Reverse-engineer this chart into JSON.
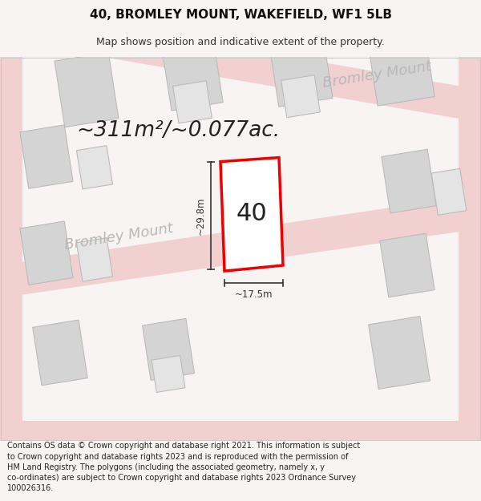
{
  "title_line1": "40, BROMLEY MOUNT, WAKEFIELD, WF1 5LB",
  "title_line2": "Map shows position and indicative extent of the property.",
  "area_text": "~311m²/~0.077ac.",
  "label_number": "40",
  "dim_height": "~29.8m",
  "dim_width": "~17.5m",
  "street_label1": "Bromley Mount",
  "street_label2": "Bromley Mount",
  "footer_text": "Contains OS data © Crown copyright and database right 2021. This information is subject\nto Crown copyright and database rights 2023 and is reproduced with the permission of\nHM Land Registry. The polygons (including the associated geometry, namely x, y\nco-ordinates) are subject to Crown copyright and database rights 2023 Ordnance Survey\n100026316.",
  "bg_color": "#f8f4f4",
  "map_bg_color": "#ffffff",
  "road_color": "#f2d0d0",
  "building_fill": "#d4d4d4",
  "building_edge": "#bbbbbb",
  "highlight_fill": "#ffffff",
  "highlight_edge": "#ee0000",
  "dim_line_color": "#333333",
  "street_text_color": "#b8b8b8",
  "area_text_color": "#222222",
  "title_fontsize": 11,
  "subtitle_fontsize": 9,
  "area_fontsize": 19,
  "label_fontsize": 22,
  "dim_fontsize": 8.5,
  "street_fontsize": 13,
  "footer_fontsize": 7,
  "map_rotation_deg": 9
}
